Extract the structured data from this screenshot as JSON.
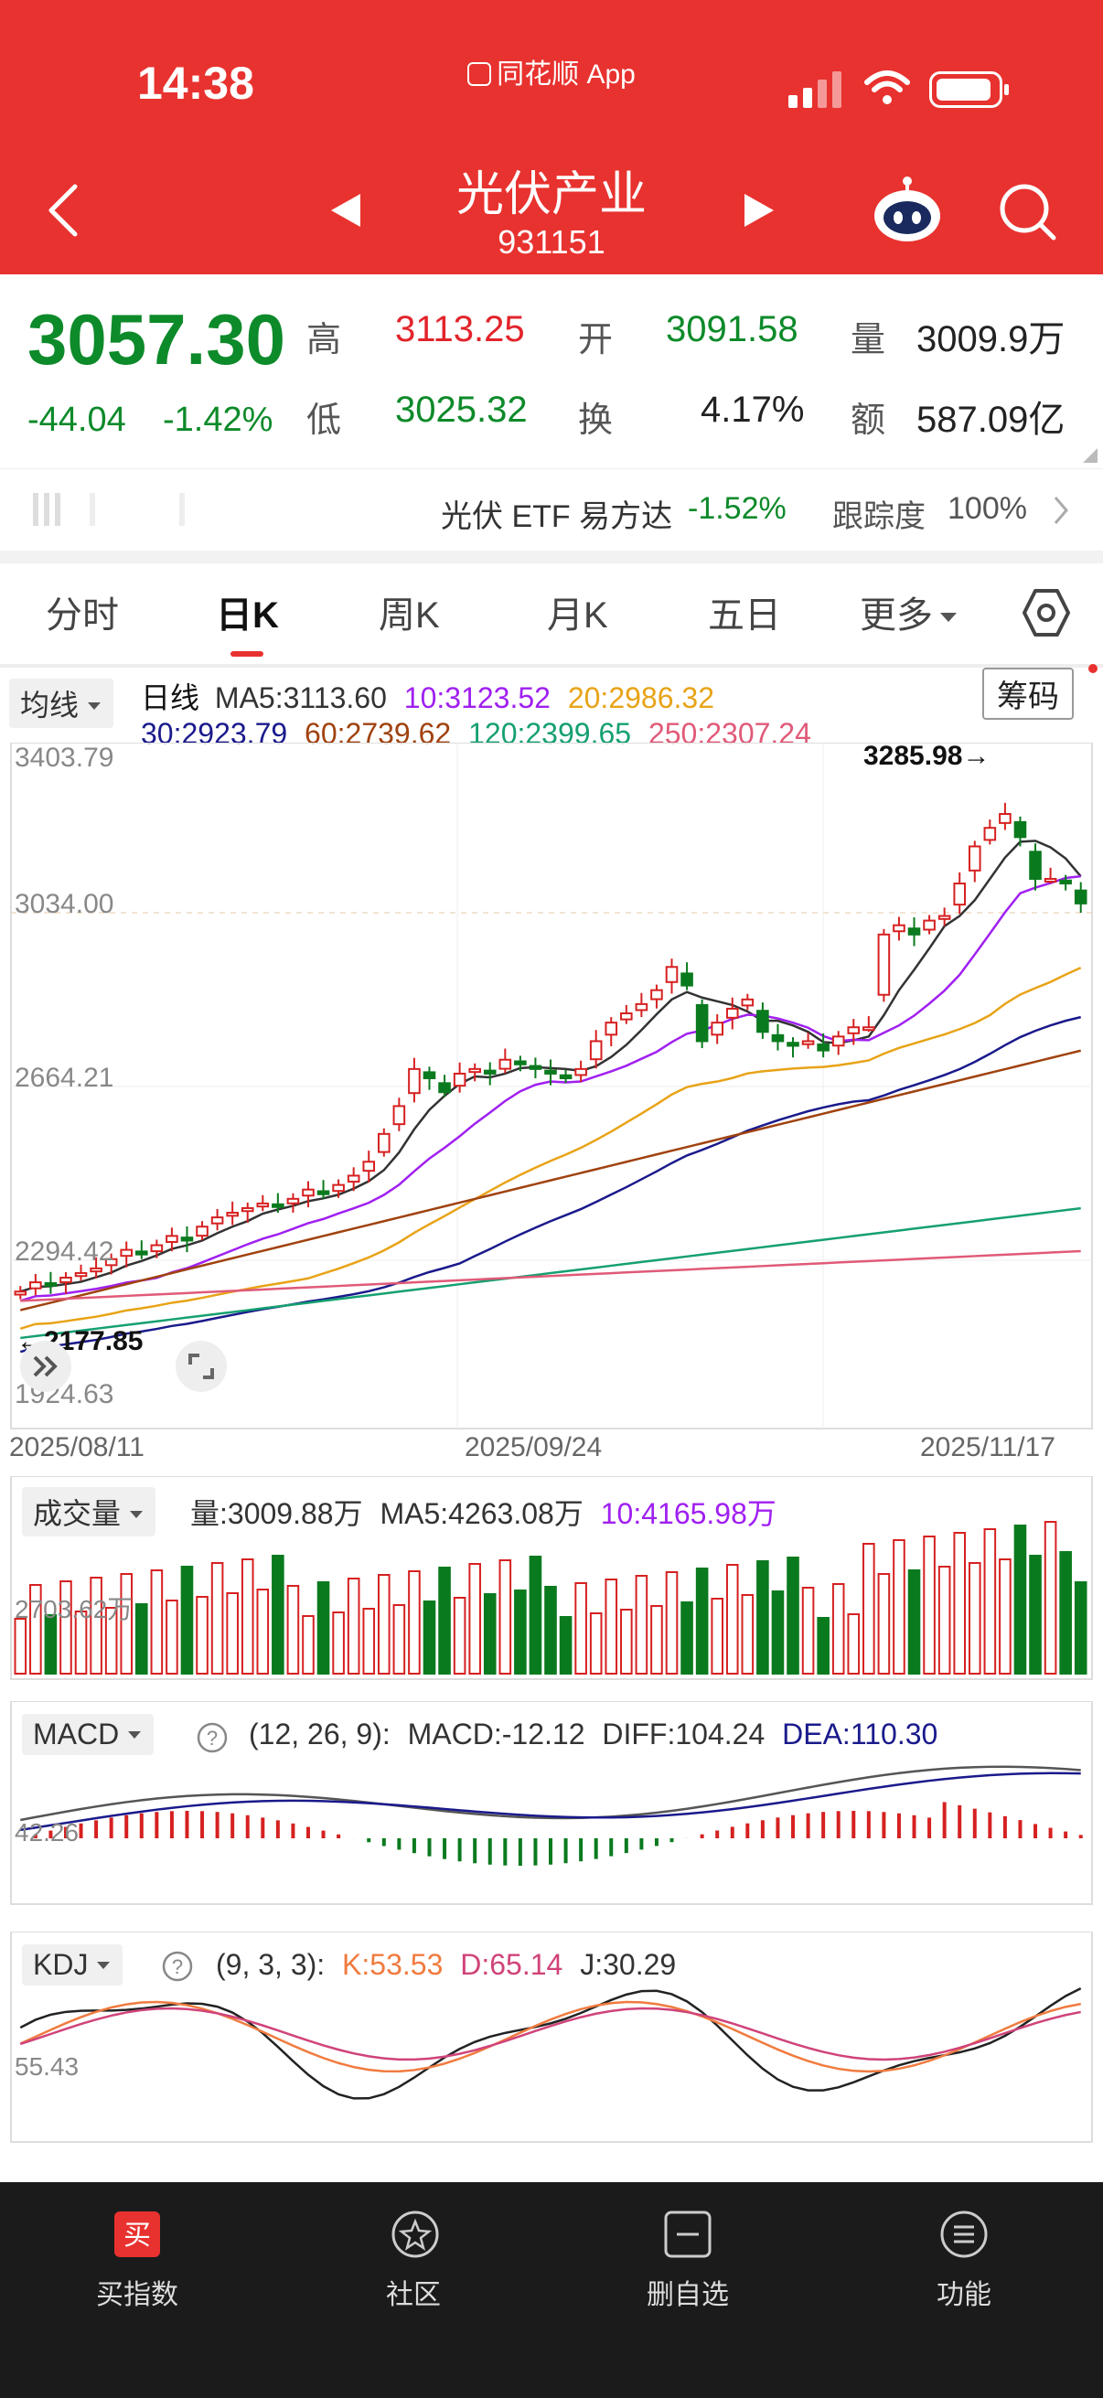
{
  "status": {
    "time": "14:38",
    "app": "同花顺 App"
  },
  "header": {
    "title": "光伏产业",
    "code": "931151"
  },
  "quote": {
    "price": "3057.30",
    "change": "-44.04",
    "change_pct": "-1.42%",
    "high_label": "高",
    "high": "3113.25",
    "low_label": "低",
    "low": "3025.32",
    "open_label": "开",
    "open": "3091.58",
    "turnover_label": "换",
    "turnover": "4.17%",
    "volume_label": "量",
    "volume": "3009.9万",
    "amount_label": "额",
    "amount": "587.09亿"
  },
  "etf": {
    "name": "光伏 ETF 易方达",
    "change": "-1.52%",
    "track_label": "跟踪度",
    "track": "100%"
  },
  "tabs": [
    "分时",
    "日K",
    "周K",
    "月K",
    "五日",
    "更多"
  ],
  "main_chart": {
    "ma_selector": "均线",
    "period": "日线",
    "ma_line1": [
      "MA5:3113.60",
      "10:3123.52",
      "20:2986.32"
    ],
    "ma_line2": [
      "30:2923.79",
      "60:2739.62",
      "120:2399.65",
      "250:2307.24"
    ],
    "chips_button": "筹码",
    "y_labels": [
      "3403.79",
      "3034.00",
      "2664.21",
      "2294.42",
      "1924.63"
    ],
    "high_marker": "3285.98→",
    "low_marker": "←2177.85",
    "dates": [
      "2025/08/11",
      "2025/09/24",
      "2025/11/17"
    ],
    "colors": {
      "ma5": "#333333",
      "ma10": "#a020f0",
      "ma20": "#e8a317",
      "ma30": "#1a1a8c",
      "ma60": "#a0420f",
      "ma120": "#16a070",
      "ma250": "#e05a78"
    }
  },
  "volume_panel": {
    "selector": "成交量",
    "vol": "量:3009.88万",
    "ma5": "MA5:4263.08万",
    "ma10": "10:4165.98万",
    "y_label": "2703.62万"
  },
  "macd_panel": {
    "selector": "MACD",
    "params": "(12, 26, 9):",
    "macd": "MACD:-12.12",
    "diff": "DIFF:104.24",
    "dea": "DEA:110.30",
    "y_label": "42.26"
  },
  "kdj_panel": {
    "selector": "KDJ",
    "params": "(9, 3, 3):",
    "k": "K:53.53",
    "d": "D:65.14",
    "j": "J:30.29",
    "y_label": "55.43"
  },
  "chart_data": {
    "type": "candlestick",
    "title": "",
    "x_range": [
      "2025/08/11",
      "2025/11/17"
    ],
    "ylim": [
      1924.63,
      3403.79
    ],
    "closes": [
      2220,
      2240,
      2235,
      2250,
      2260,
      2270,
      2290,
      2310,
      2300,
      2320,
      2340,
      2330,
      2360,
      2380,
      2390,
      2400,
      2410,
      2405,
      2420,
      2440,
      2430,
      2450,
      2470,
      2500,
      2560,
      2620,
      2700,
      2680,
      2650,
      2690,
      2700,
      2690,
      2720,
      2710,
      2700,
      2690,
      2680,
      2700,
      2760,
      2800,
      2820,
      2840,
      2870,
      2920,
      2880,
      2760,
      2800,
      2830,
      2850,
      2780,
      2760,
      2750,
      2760,
      2740,
      2770,
      2790,
      2790,
      2990,
      3010,
      2990,
      3020,
      3030,
      3100,
      3180,
      3220,
      3250,
      3200,
      3110,
      3110,
      3100,
      3057
    ]
  },
  "bottom_nav": [
    "买指数",
    "社区",
    "删自选",
    "功能"
  ]
}
